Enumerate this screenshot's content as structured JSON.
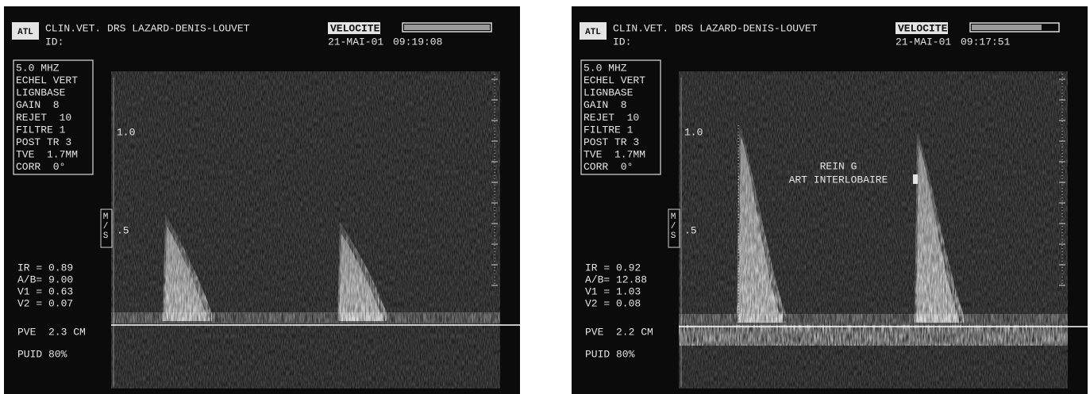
{
  "panels": [
    {
      "logo": "ATL",
      "clinic": "CLIN.VET. DRS LAZARD-DENIS-LOUVET",
      "id": "ID:",
      "mode": "VELOCITE",
      "date": "21-MAI-01",
      "time": "09:19:08",
      "settings": [
        "5.0 MHZ",
        "ECHEL VERT",
        "LIGNBASE",
        "GAIN  8",
        "REJET  10",
        "FILTRE 1",
        "POST TR 3",
        "TVE  1.7MM",
        "CORR  0°"
      ],
      "scale_labels": [
        "1.0",
        ".5"
      ],
      "unit": "M/S",
      "measurements": [
        "IR = 0.89",
        "A/B= 9.00",
        "V1 = 0.63",
        "V2 = 0.07"
      ],
      "pve": "PVE  2.3 CM",
      "power": "PUID 80%"
    },
    {
      "logo": "ATL",
      "clinic": "CLIN.VET. DRS LAZARD-DENIS-LOUVET",
      "id": "ID:",
      "mode": "VELOCITE",
      "date": "21-MAI-01",
      "time": "09:17:51",
      "settings": [
        "5.0 MHZ",
        "ECHEL VERT",
        "LIGNBASE",
        "GAIN  8",
        "REJET  10",
        "FILTRE 1",
        "POST TR 3",
        "TVE  1.7MM",
        "CORR  0°"
      ],
      "scale_labels": [
        "1.0",
        ".5"
      ],
      "unit": "M/S",
      "measurements": [
        "IR = 0.92",
        "A/B= 12.88",
        "V1 = 1.03",
        "V2 = 0.08"
      ],
      "pve": "PVE  2.2 CM",
      "power": "PUID 80%",
      "annotation": [
        "REIN G",
        "ART INTERLOBAIRE"
      ]
    }
  ]
}
